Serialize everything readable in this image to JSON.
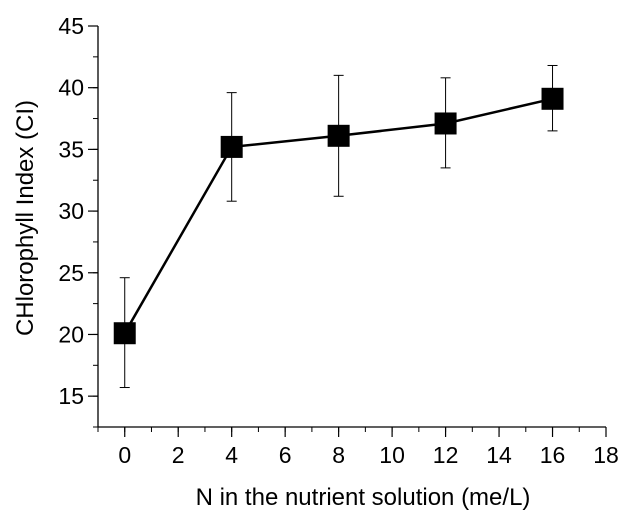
{
  "chart_data": {
    "type": "line",
    "title": "",
    "xlabel": "N in the nutrient solution (me/L)",
    "ylabel": "CHlorophyll Index (CI)",
    "xlim": [
      -1,
      18
    ],
    "ylim": [
      12.5,
      45
    ],
    "x_ticks": [
      0,
      2,
      4,
      6,
      8,
      10,
      12,
      14,
      16,
      18
    ],
    "y_ticks": [
      15,
      20,
      25,
      30,
      35,
      40,
      45
    ],
    "x_minor_step": 1,
    "y_minor_step": 2.5,
    "grid": false,
    "legend": "none",
    "marker": "square",
    "series": [
      {
        "x": [
          0,
          4,
          8,
          12,
          16
        ],
        "values": [
          20.1,
          35.2,
          36.1,
          37.1,
          39.1
        ],
        "error_lower": [
          15.7,
          30.8,
          31.2,
          33.5,
          36.5
        ],
        "error_upper": [
          24.6,
          39.6,
          41.0,
          40.8,
          41.8
        ],
        "color": "#000000"
      }
    ]
  }
}
